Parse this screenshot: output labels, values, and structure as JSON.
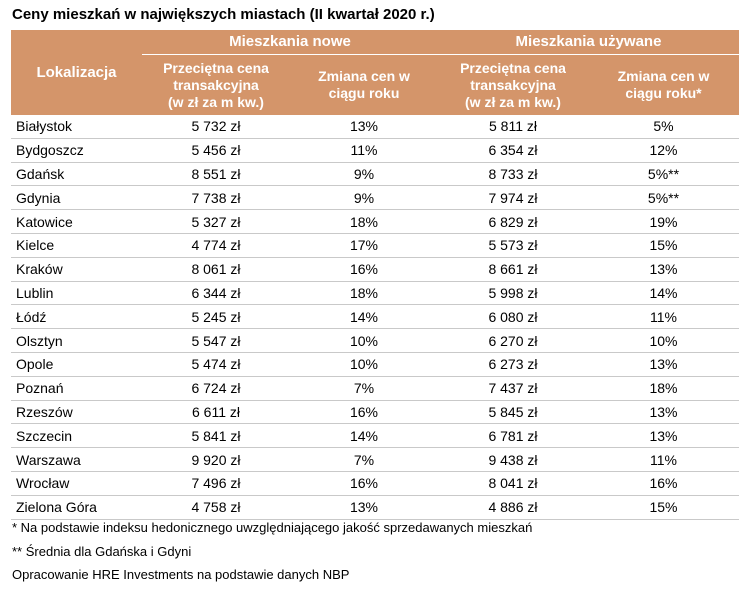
{
  "title": "Ceny mieszkań w największych miastach (II kwartał 2020 r.)",
  "header": {
    "location": "Lokalizacja",
    "group_new": "Mieszkania nowe",
    "group_used": "Mieszkania używane",
    "price_col_line1": "Przeciętna cena",
    "price_col_line2": "transakcyjna",
    "price_col_line3": "(w zł za m kw.)",
    "change_col_line1": "Zmiana cen w",
    "change_col_line2": "ciągu roku",
    "change_col_used_line2": "ciągu roku*"
  },
  "chart_data": {
    "type": "table",
    "title": "Ceny mieszkań w największych miastach (II kwartał 2020 r.)",
    "columns": [
      "Lokalizacja",
      "Mieszkania nowe: Przeciętna cena transakcyjna (w zł za m kw.)",
      "Mieszkania nowe: Zmiana cen w ciągu roku",
      "Mieszkania używane: Przeciętna cena transakcyjna (w zł za m kw.)",
      "Mieszkania używane: Zmiana cen w ciągu roku*"
    ],
    "rows": [
      {
        "city": "Białystok",
        "new_price": "5 732 zł",
        "new_change": "13%",
        "used_price": "5 811 zł",
        "used_change": "5%"
      },
      {
        "city": "Bydgoszcz",
        "new_price": "5 456 zł",
        "new_change": "11%",
        "used_price": "6 354 zł",
        "used_change": "12%"
      },
      {
        "city": "Gdańsk",
        "new_price": "8 551 zł",
        "new_change": "9%",
        "used_price": "8 733 zł",
        "used_change": "5%**"
      },
      {
        "city": "Gdynia",
        "new_price": "7 738 zł",
        "new_change": "9%",
        "used_price": "7 974 zł",
        "used_change": "5%**"
      },
      {
        "city": "Katowice",
        "new_price": "5 327 zł",
        "new_change": "18%",
        "used_price": "6 829 zł",
        "used_change": "19%"
      },
      {
        "city": "Kielce",
        "new_price": "4 774 zł",
        "new_change": "17%",
        "used_price": "5 573 zł",
        "used_change": "15%"
      },
      {
        "city": "Kraków",
        "new_price": "8 061 zł",
        "new_change": "16%",
        "used_price": "8 661 zł",
        "used_change": "13%"
      },
      {
        "city": "Lublin",
        "new_price": "6 344 zł",
        "new_change": "18%",
        "used_price": "5 998 zł",
        "used_change": "14%"
      },
      {
        "city": "Łódź",
        "new_price": "5 245 zł",
        "new_change": "14%",
        "used_price": "6 080 zł",
        "used_change": "11%"
      },
      {
        "city": "Olsztyn",
        "new_price": "5 547 zł",
        "new_change": "10%",
        "used_price": "6 270 zł",
        "used_change": "10%"
      },
      {
        "city": "Opole",
        "new_price": "5 474 zł",
        "new_change": "10%",
        "used_price": "6 273 zł",
        "used_change": "13%"
      },
      {
        "city": "Poznań",
        "new_price": "6 724 zł",
        "new_change": "7%",
        "used_price": "7 437 zł",
        "used_change": "18%"
      },
      {
        "city": "Rzeszów",
        "new_price": "6 611 zł",
        "new_change": "16%",
        "used_price": "5 845 zł",
        "used_change": "13%"
      },
      {
        "city": "Szczecin",
        "new_price": "5 841 zł",
        "new_change": "14%",
        "used_price": "6 781 zł",
        "used_change": "13%"
      },
      {
        "city": "Warszawa",
        "new_price": "9 920 zł",
        "new_change": "7%",
        "used_price": "9 438 zł",
        "used_change": "11%"
      },
      {
        "city": "Wrocław",
        "new_price": "7 496 zł",
        "new_change": "16%",
        "used_price": "8 041 zł",
        "used_change": "16%"
      },
      {
        "city": "Zielona Góra",
        "new_price": "4 758 zł",
        "new_change": "13%",
        "used_price": "4 886 zł",
        "used_change": "15%"
      }
    ]
  },
  "footnotes": {
    "note1": "* Na podstawie indeksu hedonicznego uwzględniającego jakość sprzedawanych mieszkań",
    "note2": "** Średnia dla Gdańska i Gdyni",
    "source": "Opracowanie HRE Investments na podstawie danych NBP"
  },
  "colors": {
    "header_bg": "#d4956a",
    "header_text": "#ffffff",
    "row_border": "#c9c9c9"
  }
}
